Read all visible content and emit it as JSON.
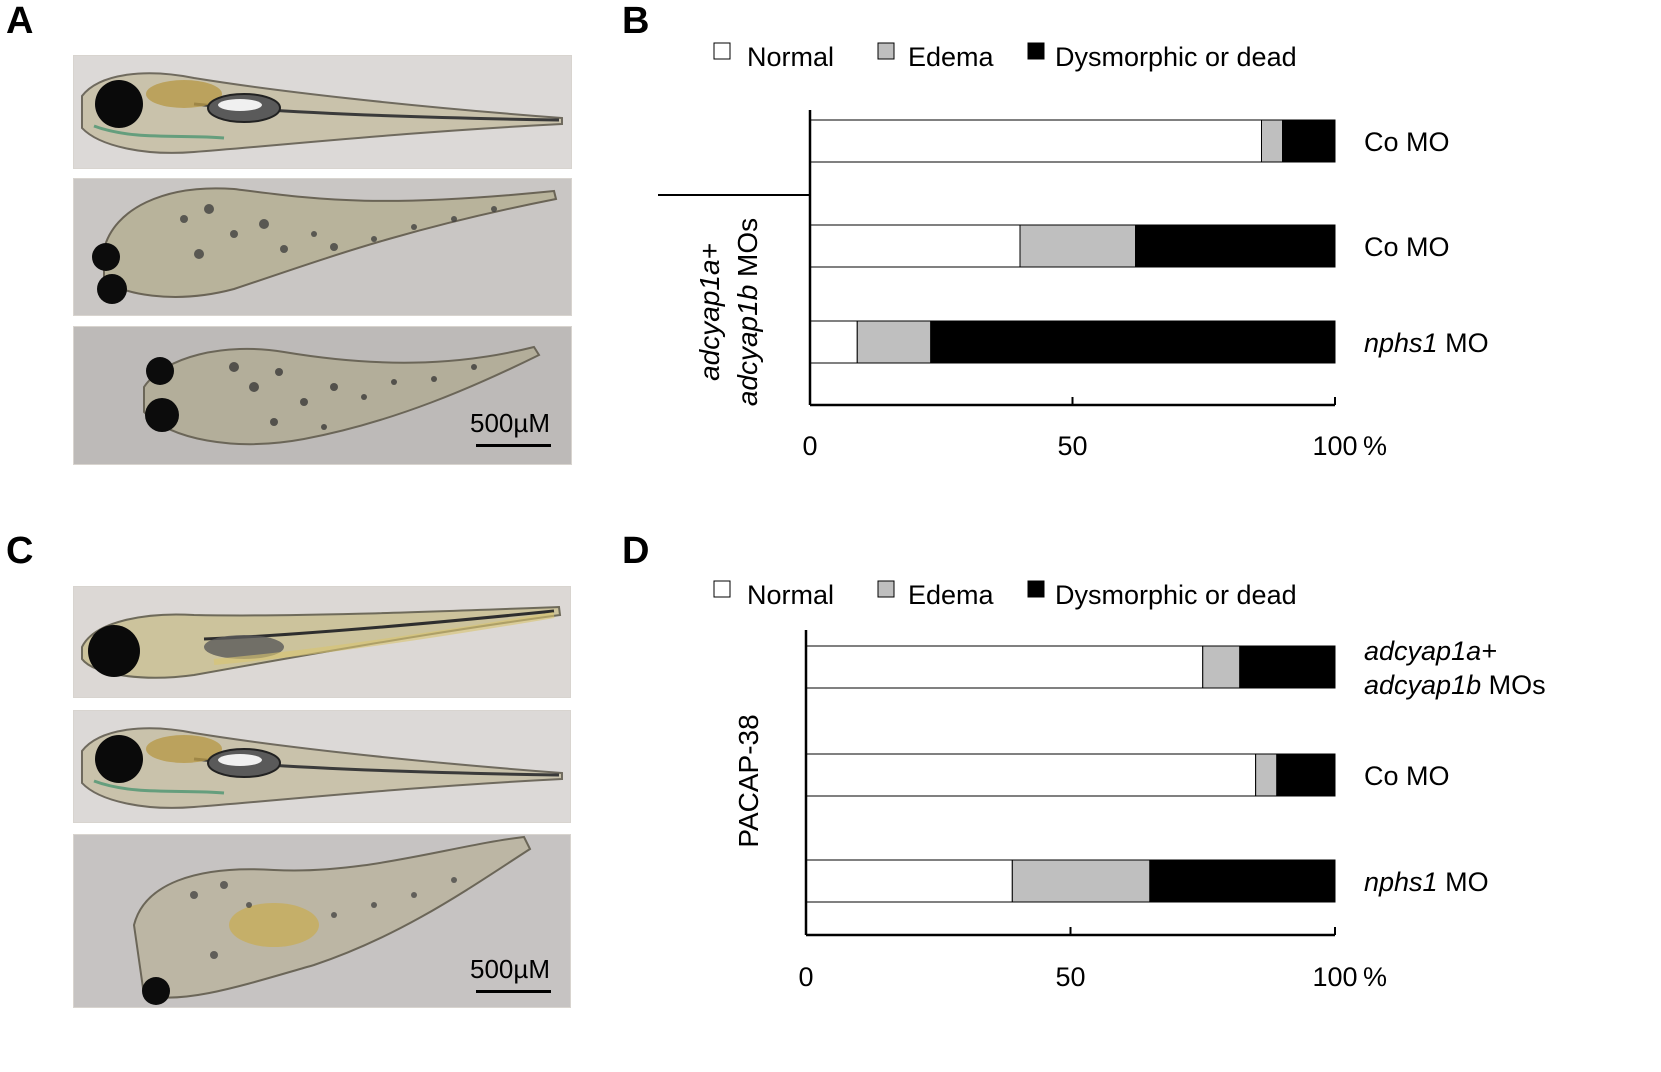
{
  "panels": {
    "A": {
      "letter": "A",
      "scalebar": "500µM"
    },
    "B": {
      "letter": "B"
    },
    "C": {
      "letter": "C",
      "scalebar": "500µM"
    },
    "D": {
      "letter": "D"
    }
  },
  "legend": {
    "items": [
      {
        "label": "Normal",
        "color": "#ffffff"
      },
      {
        "label": "Edema",
        "color": "#bfbfbf"
      },
      {
        "label": "Dysmorphic or dead",
        "color": "#000000"
      }
    ]
  },
  "chart_data": [
    {
      "panel": "B",
      "type": "bar",
      "orientation": "horizontal",
      "stacked": "percent",
      "group_label": [
        "adcyap1a+",
        "adcyap1b MOs"
      ],
      "categories": [
        "Co MO",
        "Co MO",
        "nphs1 MO"
      ],
      "category_italic": [
        false,
        false,
        true
      ],
      "series": [
        {
          "name": "Normal",
          "values": [
            86,
            40,
            9
          ]
        },
        {
          "name": "Edema",
          "values": [
            4,
            22,
            14
          ]
        },
        {
          "name": "Dysmorphic or dead",
          "values": [
            10,
            38,
            77
          ]
        }
      ],
      "xlim": [
        0,
        100
      ],
      "xticks": [
        "0",
        "50",
        "100"
      ],
      "xunit": "%"
    },
    {
      "panel": "D",
      "type": "bar",
      "orientation": "horizontal",
      "stacked": "percent",
      "group_label": [
        "PACAP-38"
      ],
      "categories": [
        "adcyap1a+ adcyap1b MOs",
        "Co MO",
        "nphs1 MO"
      ],
      "category_lines": [
        [
          "adcyap1a+",
          "adcyap1b MOs"
        ],
        [
          "Co MO"
        ],
        [
          "nphs1 MO"
        ]
      ],
      "category_italic": [
        true,
        false,
        true
      ],
      "series": [
        {
          "name": "Normal",
          "values": [
            75,
            85,
            39
          ]
        },
        {
          "name": "Edema",
          "values": [
            7,
            4,
            26
          ]
        },
        {
          "name": "Dysmorphic or dead",
          "values": [
            18,
            11,
            35
          ]
        }
      ],
      "xlim": [
        0,
        100
      ],
      "xticks": [
        "0",
        "50",
        "100"
      ],
      "xunit": "%"
    }
  ]
}
